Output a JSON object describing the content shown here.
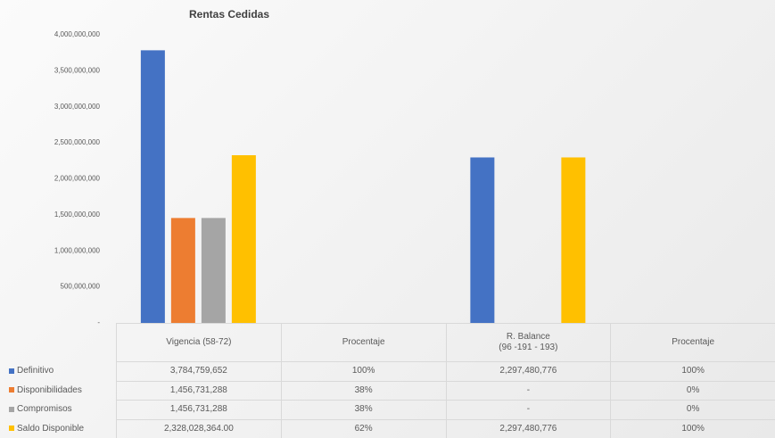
{
  "chart_data": {
    "type": "bar",
    "title": "Rentas Cedidas",
    "categories": [
      "Vigencia (58-72)",
      "Procentaje",
      "R. Balance\n(96 -191 - 193)",
      "Procentaje"
    ],
    "series": [
      {
        "name": "Definitivo",
        "color": "#4472c4",
        "values": [
          3784759652,
          100,
          2297480776,
          100
        ],
        "value_labels": [
          "3,784,759,652",
          "100%",
          "2,297,480,776",
          "100%"
        ]
      },
      {
        "name": "Disponibilidades",
        "color": "#ed7d31",
        "values": [
          1456731288,
          38,
          0,
          0
        ],
        "value_labels": [
          "1,456,731,288",
          "38%",
          "-",
          "0%"
        ]
      },
      {
        "name": "Compromisos",
        "color": "#a5a5a5",
        "values": [
          1456731288,
          38,
          0,
          0
        ],
        "value_labels": [
          "1,456,731,288",
          "38%",
          "-",
          "0%"
        ]
      },
      {
        "name": "Saldo Disponible",
        "color": "#ffc000",
        "values": [
          2328028364,
          62,
          2297480776,
          100
        ],
        "value_labels": [
          "2,328,028,364.00",
          "62%",
          "2,297,480,776",
          "100%"
        ]
      }
    ],
    "ylim": [
      0,
      4000000000
    ],
    "yticks": [
      {
        "value": 0,
        "label": "-"
      },
      {
        "value": 500000000,
        "label": "500,000,000"
      },
      {
        "value": 1000000000,
        "label": "1,000,000,000"
      },
      {
        "value": 1500000000,
        "label": "1,500,000,000"
      },
      {
        "value": 2000000000,
        "label": "2,000,000,000"
      },
      {
        "value": 2500000000,
        "label": "2,500,000,000"
      },
      {
        "value": 3000000000,
        "label": "3,000,000,000"
      },
      {
        "value": 3500000000,
        "label": "3,500,000,000"
      },
      {
        "value": 4000000000,
        "label": "4,000,000,000"
      }
    ],
    "grid": false
  }
}
